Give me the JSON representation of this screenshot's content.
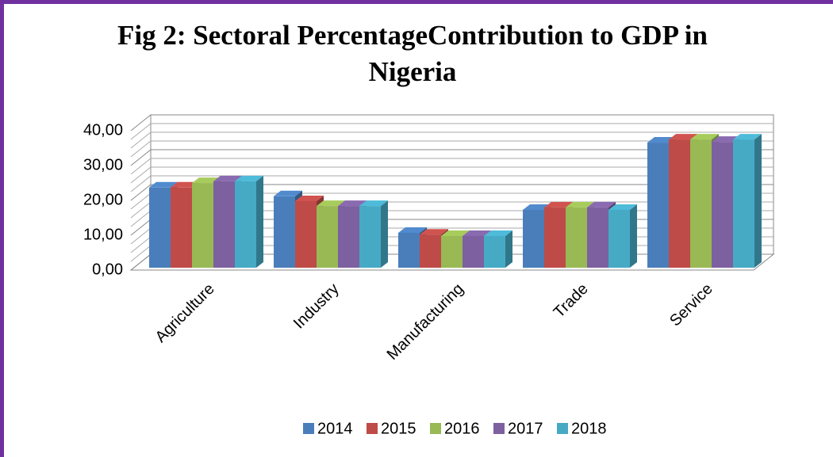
{
  "chart_data": {
    "type": "bar3d",
    "title": "Fig 2: Sectoral PercentageContribution to GDP in Nigeria",
    "categories": [
      "Agriculture",
      "Industry",
      "Manufacturing",
      "Trade",
      "Service"
    ],
    "series": [
      {
        "name": "2014",
        "color": "#4a7ebb",
        "values": [
          23.0,
          20.5,
          10.0,
          16.6,
          35.9
        ]
      },
      {
        "name": "2015",
        "color": "#be4b48",
        "values": [
          23.0,
          19.1,
          9.5,
          17.3,
          36.8
        ]
      },
      {
        "name": "2016",
        "color": "#98b954",
        "values": [
          24.3,
          17.7,
          9.1,
          17.3,
          36.8
        ]
      },
      {
        "name": "2017",
        "color": "#7d60a0",
        "values": [
          24.8,
          17.7,
          9.1,
          17.3,
          36.1
        ]
      },
      {
        "name": "2018",
        "color": "#46aac5",
        "values": [
          24.8,
          17.7,
          9.1,
          16.6,
          36.8
        ]
      }
    ],
    "ylim": [
      0,
      40
    ],
    "yticks": [
      {
        "value": 0,
        "label": "0,00"
      },
      {
        "value": 10,
        "label": "10,00"
      },
      {
        "value": 20,
        "label": "20,00"
      },
      {
        "value": 30,
        "label": "30,00"
      },
      {
        "value": 40,
        "label": "40,00"
      }
    ],
    "grid": true,
    "legend": "bottom"
  }
}
